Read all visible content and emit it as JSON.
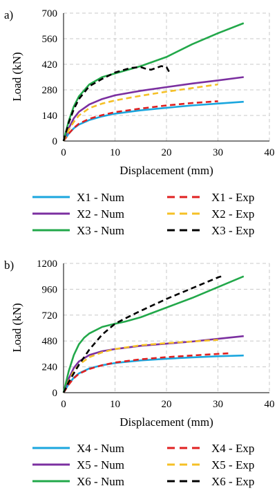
{
  "chart_data": [
    {
      "type": "line",
      "panel_label": "a)",
      "xlabel": "Displacement (mm)",
      "ylabel": "Load (kN)",
      "xlim": [
        0,
        40
      ],
      "ylim": [
        0,
        700
      ],
      "xticks": [
        0,
        10,
        20,
        30,
        40
      ],
      "yticks": [
        0,
        140,
        280,
        420,
        560,
        700
      ],
      "grid": true,
      "legend_position": "bottom",
      "series": [
        {
          "name": "X1 - Num",
          "color": "#1aa6de",
          "dash": "solid",
          "x": [
            0,
            1,
            2,
            3,
            5,
            7.5,
            10,
            15,
            20,
            25,
            30,
            35
          ],
          "y": [
            0,
            40,
            70,
            90,
            115,
            135,
            150,
            168,
            182,
            195,
            205,
            215
          ]
        },
        {
          "name": "X1 - Exp",
          "color": "#e02020",
          "dash": "dashed",
          "x": [
            0,
            1,
            2,
            3,
            5,
            7.5,
            10,
            15,
            20,
            25,
            30
          ],
          "y": [
            0,
            40,
            72,
            95,
            122,
            142,
            158,
            178,
            195,
            208,
            218
          ]
        },
        {
          "name": "X2 - Num",
          "color": "#7b2fa0",
          "dash": "solid",
          "x": [
            0,
            1,
            2,
            3,
            5,
            7.5,
            10,
            15,
            20,
            25,
            30,
            35
          ],
          "y": [
            0,
            70,
            125,
            160,
            200,
            230,
            250,
            275,
            295,
            315,
            332,
            350
          ]
        },
        {
          "name": "X2 - Exp",
          "color": "#f5c026",
          "dash": "dashed",
          "x": [
            0,
            1,
            2,
            3,
            5,
            7.5,
            10,
            15,
            20,
            25,
            30
          ],
          "y": [
            0,
            60,
            105,
            140,
            180,
            205,
            222,
            248,
            270,
            290,
            310
          ]
        },
        {
          "name": "X3 - Num",
          "color": "#22a84a",
          "dash": "solid",
          "x": [
            0,
            1,
            2,
            3,
            5,
            7.5,
            10,
            15,
            20,
            25,
            30,
            35
          ],
          "y": [
            0,
            110,
            190,
            245,
            310,
            350,
            370,
            410,
            460,
            530,
            590,
            645
          ]
        },
        {
          "name": "X3 - Exp",
          "color": "#000000",
          "dash": "dashed",
          "x": [
            0,
            1,
            2,
            3,
            5,
            7.5,
            10,
            13,
            15,
            16,
            17,
            18,
            19,
            20,
            20.5
          ],
          "y": [
            0,
            100,
            175,
            230,
            300,
            340,
            375,
            400,
            405,
            395,
            390,
            400,
            410,
            405,
            380
          ]
        }
      ]
    },
    {
      "type": "line",
      "panel_label": "b)",
      "xlabel": "Displacement (mm)",
      "ylabel": "Load (kN)",
      "xlim": [
        0,
        40
      ],
      "ylim": [
        0,
        1200
      ],
      "xticks": [
        0,
        10,
        20,
        30,
        40
      ],
      "yticks": [
        0,
        240,
        480,
        720,
        960,
        1200
      ],
      "grid": true,
      "legend_position": "bottom",
      "series": [
        {
          "name": "X4 - Num",
          "color": "#1aa6de",
          "dash": "solid",
          "x": [
            0,
            1,
            2,
            3,
            5,
            7.5,
            10,
            15,
            20,
            25,
            30,
            35
          ],
          "y": [
            0,
            80,
            140,
            180,
            225,
            255,
            275,
            300,
            315,
            328,
            338,
            345
          ]
        },
        {
          "name": "X4 - Exp",
          "color": "#e02020",
          "dash": "dashed",
          "x": [
            0,
            1,
            2,
            3,
            5,
            7.5,
            10,
            15,
            20,
            25,
            30,
            32
          ],
          "y": [
            0,
            75,
            135,
            175,
            220,
            255,
            280,
            310,
            330,
            345,
            360,
            365
          ]
        },
        {
          "name": "X5 - Num",
          "color": "#7b2fa0",
          "dash": "solid",
          "x": [
            0,
            1,
            2,
            3,
            5,
            7.5,
            10,
            15,
            20,
            25,
            30,
            35
          ],
          "y": [
            0,
            130,
            230,
            290,
            350,
            385,
            405,
            435,
            455,
            475,
            500,
            525
          ]
        },
        {
          "name": "X5 - Exp",
          "color": "#f5c026",
          "dash": "dashed",
          "x": [
            0,
            1,
            2,
            3,
            5,
            7.5,
            10,
            15,
            20,
            25,
            30
          ],
          "y": [
            0,
            110,
            200,
            260,
            330,
            375,
            405,
            440,
            460,
            475,
            490
          ]
        },
        {
          "name": "X6 - Num",
          "color": "#22a84a",
          "dash": "solid",
          "x": [
            0,
            1,
            2,
            3,
            4,
            5,
            7.5,
            10,
            12,
            15,
            20,
            25,
            30,
            35
          ],
          "y": [
            0,
            200,
            350,
            450,
            510,
            550,
            610,
            640,
            660,
            700,
            790,
            880,
            980,
            1080
          ]
        },
        {
          "name": "X6 - Exp",
          "color": "#000000",
          "dash": "dashed",
          "x": [
            0,
            1,
            2,
            3,
            5,
            7.5,
            10,
            12,
            15,
            20,
            25,
            30,
            31
          ],
          "y": [
            0,
            100,
            180,
            260,
            400,
            540,
            640,
            690,
            760,
            870,
            970,
            1070,
            1085
          ]
        }
      ]
    }
  ]
}
